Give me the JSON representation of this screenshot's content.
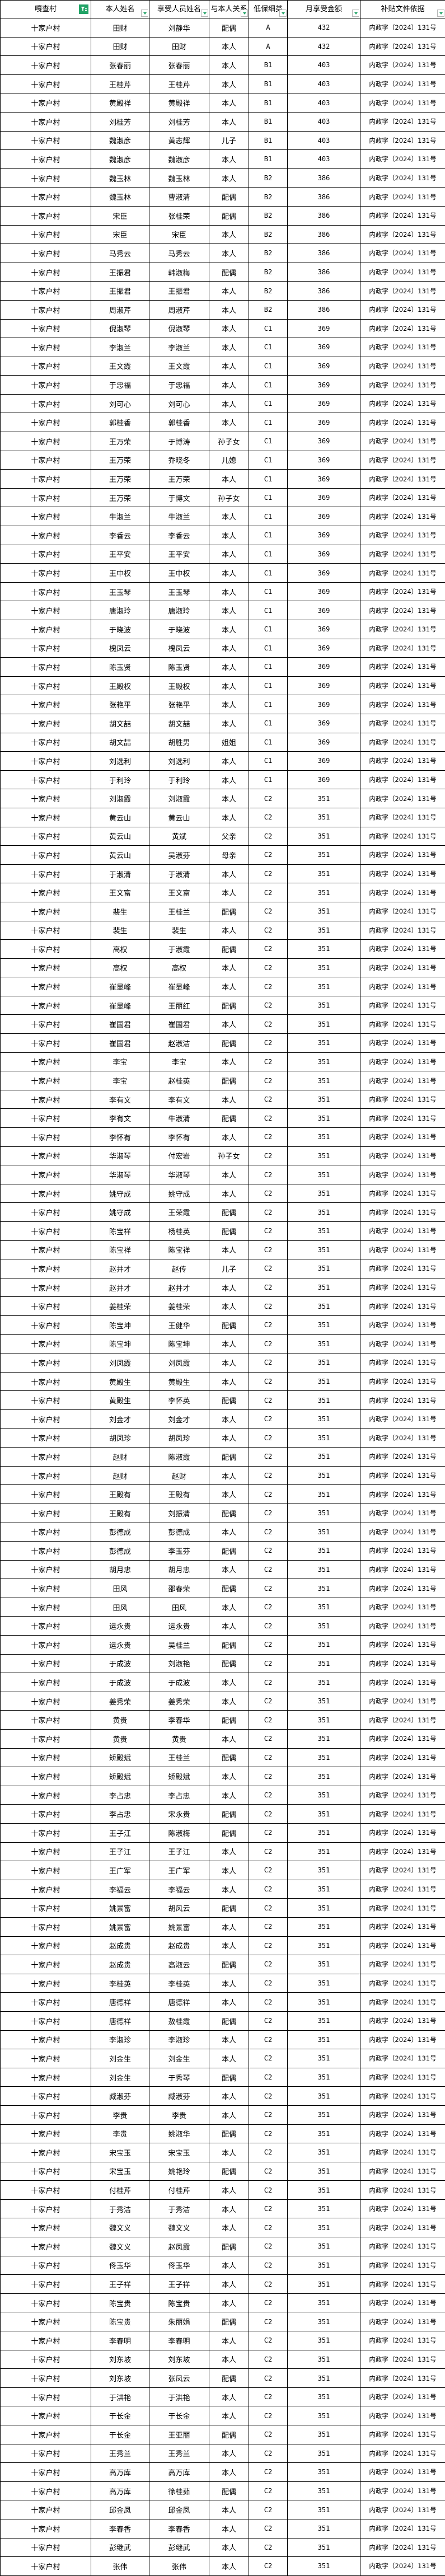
{
  "table": {
    "columns": [
      {
        "label": "嘎查村",
        "filter": "applied"
      },
      {
        "label": "本人姓名",
        "filter": "dropdown"
      },
      {
        "label": "享受人员姓名",
        "filter": "dropdown"
      },
      {
        "label": "与本人关系",
        "filter": "dropdown"
      },
      {
        "label": "低保细类",
        "filter": "dropdown"
      },
      {
        "label": "月享受金额",
        "filter": "dropdown"
      },
      {
        "label": "补贴文件依据",
        "filter": "dropdown"
      }
    ],
    "rows": [
      [
        "十家户村",
        "田财",
        "刘静华",
        "配偶",
        "A",
        "432",
        "内政字（2024）131号"
      ],
      [
        "十家户村",
        "田财",
        "田财",
        "本人",
        "A",
        "432",
        "内政字（2024）131号"
      ],
      [
        "十家户村",
        "张春丽",
        "张春丽",
        "本人",
        "B1",
        "403",
        "内政字（2024）131号"
      ],
      [
        "十家户村",
        "王桂芹",
        "王桂芹",
        "本人",
        "B1",
        "403",
        "内政字（2024）131号"
      ],
      [
        "十家户村",
        "黄殿祥",
        "黄殿祥",
        "本人",
        "B1",
        "403",
        "内政字（2024）131号"
      ],
      [
        "十家户村",
        "刘桂芳",
        "刘桂芳",
        "本人",
        "B1",
        "403",
        "内政字（2024）131号"
      ],
      [
        "十家户村",
        "魏淑彦",
        "黄志辉",
        "儿子",
        "B1",
        "403",
        "内政字（2024）131号"
      ],
      [
        "十家户村",
        "魏淑彦",
        "魏淑彦",
        "本人",
        "B1",
        "403",
        "内政字（2024）131号"
      ],
      [
        "十家户村",
        "魏玉林",
        "魏玉林",
        "本人",
        "B2",
        "386",
        "内政字（2024）131号"
      ],
      [
        "十家户村",
        "魏玉林",
        "曹淑清",
        "配偶",
        "B2",
        "386",
        "内政字（2024）131号"
      ],
      [
        "十家户村",
        "宋臣",
        "张桂荣",
        "配偶",
        "B2",
        "386",
        "内政字（2024）131号"
      ],
      [
        "十家户村",
        "宋臣",
        "宋臣",
        "本人",
        "B2",
        "386",
        "内政字（2024）131号"
      ],
      [
        "十家户村",
        "马秀云",
        "马秀云",
        "本人",
        "B2",
        "386",
        "内政字（2024）131号"
      ],
      [
        "十家户村",
        "王振君",
        "韩淑梅",
        "配偶",
        "B2",
        "386",
        "内政字（2024）131号"
      ],
      [
        "十家户村",
        "王振君",
        "王振君",
        "本人",
        "B2",
        "386",
        "内政字（2024）131号"
      ],
      [
        "十家户村",
        "周淑芹",
        "周淑芹",
        "本人",
        "B2",
        "386",
        "内政字（2024）131号"
      ],
      [
        "十家户村",
        "倪淑琴",
        "倪淑琴",
        "本人",
        "C1",
        "369",
        "内政字（2024）131号"
      ],
      [
        "十家户村",
        "李淑兰",
        "李淑兰",
        "本人",
        "C1",
        "369",
        "内政字（2024）131号"
      ],
      [
        "十家户村",
        "王文霞",
        "王文霞",
        "本人",
        "C1",
        "369",
        "内政字（2024）131号"
      ],
      [
        "十家户村",
        "于忠福",
        "于忠福",
        "本人",
        "C1",
        "369",
        "内政字（2024）131号"
      ],
      [
        "十家户村",
        "刘可心",
        "刘可心",
        "本人",
        "C1",
        "369",
        "内政字（2024）131号"
      ],
      [
        "十家户村",
        "郭桂香",
        "郭桂香",
        "本人",
        "C1",
        "369",
        "内政字（2024）131号"
      ],
      [
        "十家户村",
        "王万荣",
        "于博涛",
        "孙子女",
        "C1",
        "369",
        "内政字（2024）131号"
      ],
      [
        "十家户村",
        "王万荣",
        "乔晓冬",
        "儿媳",
        "C1",
        "369",
        "内政字（2024）131号"
      ],
      [
        "十家户村",
        "王万荣",
        "王万荣",
        "本人",
        "C1",
        "369",
        "内政字（2024）131号"
      ],
      [
        "十家户村",
        "王万荣",
        "于博文",
        "孙子女",
        "C1",
        "369",
        "内政字（2024）131号"
      ],
      [
        "十家户村",
        "牛淑兰",
        "牛淑兰",
        "本人",
        "C1",
        "369",
        "内政字（2024）131号"
      ],
      [
        "十家户村",
        "李香云",
        "李香云",
        "本人",
        "C1",
        "369",
        "内政字（2024）131号"
      ],
      [
        "十家户村",
        "王平安",
        "王平安",
        "本人",
        "C1",
        "369",
        "内政字（2024）131号"
      ],
      [
        "十家户村",
        "王中权",
        "王中权",
        "本人",
        "C1",
        "369",
        "内政字（2024）131号"
      ],
      [
        "十家户村",
        "王玉琴",
        "王玉琴",
        "本人",
        "C1",
        "369",
        "内政字（2024）131号"
      ],
      [
        "十家户村",
        "唐淑玲",
        "唐淑玲",
        "本人",
        "C1",
        "369",
        "内政字（2024）131号"
      ],
      [
        "十家户村",
        "于晓波",
        "于晓波",
        "本人",
        "C1",
        "369",
        "内政字（2024）131号"
      ],
      [
        "十家户村",
        "槐凤云",
        "槐凤云",
        "本人",
        "C1",
        "369",
        "内政字（2024）131号"
      ],
      [
        "十家户村",
        "陈玉贤",
        "陈玉贤",
        "本人",
        "C1",
        "369",
        "内政字（2024）131号"
      ],
      [
        "十家户村",
        "王殿权",
        "王殿权",
        "本人",
        "C1",
        "369",
        "内政字（2024）131号"
      ],
      [
        "十家户村",
        "张艳平",
        "张艳平",
        "本人",
        "C1",
        "369",
        "内政字（2024）131号"
      ],
      [
        "十家户村",
        "胡文喆",
        "胡文喆",
        "本人",
        "C1",
        "369",
        "内政字（2024）131号"
      ],
      [
        "十家户村",
        "胡文喆",
        "胡胜男",
        "姐姐",
        "C1",
        "369",
        "内政字（2024）131号"
      ],
      [
        "十家户村",
        "刘选利",
        "刘选利",
        "本人",
        "C1",
        "369",
        "内政字（2024）131号"
      ],
      [
        "十家户村",
        "于利玲",
        "于利玲",
        "本人",
        "C1",
        "369",
        "内政字（2024）131号"
      ],
      [
        "十家户村",
        "刘淑霞",
        "刘淑霞",
        "本人",
        "C2",
        "351",
        "内政字（2024）131号"
      ],
      [
        "十家户村",
        "黄云山",
        "黄云山",
        "本人",
        "C2",
        "351",
        "内政字（2024）131号"
      ],
      [
        "十家户村",
        "黄云山",
        "黄斌",
        "父亲",
        "C2",
        "351",
        "内政字（2024）131号"
      ],
      [
        "十家户村",
        "黄云山",
        "吴淑芬",
        "母亲",
        "C2",
        "351",
        "内政字（2024）131号"
      ],
      [
        "十家户村",
        "于淑清",
        "于淑清",
        "本人",
        "C2",
        "351",
        "内政字（2024）131号"
      ],
      [
        "十家户村",
        "王文富",
        "王文富",
        "本人",
        "C2",
        "351",
        "内政字（2024）131号"
      ],
      [
        "十家户村",
        "裴生",
        "王桂兰",
        "配偶",
        "C2",
        "351",
        "内政字（2024）131号"
      ],
      [
        "十家户村",
        "裴生",
        "裴生",
        "本人",
        "C2",
        "351",
        "内政字（2024）131号"
      ],
      [
        "十家户村",
        "高权",
        "于淑霞",
        "配偶",
        "C2",
        "351",
        "内政字（2024）131号"
      ],
      [
        "十家户村",
        "高权",
        "高权",
        "本人",
        "C2",
        "351",
        "内政字（2024）131号"
      ],
      [
        "十家户村",
        "崔显峰",
        "崔显峰",
        "本人",
        "C2",
        "351",
        "内政字（2024）131号"
      ],
      [
        "十家户村",
        "崔显峰",
        "王丽红",
        "配偶",
        "C2",
        "351",
        "内政字（2024）131号"
      ],
      [
        "十家户村",
        "崔国君",
        "崔国君",
        "本人",
        "C2",
        "351",
        "内政字（2024）131号"
      ],
      [
        "十家户村",
        "崔国君",
        "赵淑洁",
        "配偶",
        "C2",
        "351",
        "内政字（2024）131号"
      ],
      [
        "十家户村",
        "李宝",
        "李宝",
        "本人",
        "C2",
        "351",
        "内政字（2024）131号"
      ],
      [
        "十家户村",
        "李宝",
        "赵桂英",
        "配偶",
        "C2",
        "351",
        "内政字（2024）131号"
      ],
      [
        "十家户村",
        "李有文",
        "李有文",
        "本人",
        "C2",
        "351",
        "内政字（2024）131号"
      ],
      [
        "十家户村",
        "李有文",
        "牛淑清",
        "配偶",
        "C2",
        "351",
        "内政字（2024）131号"
      ],
      [
        "十家户村",
        "李怀有",
        "李怀有",
        "本人",
        "C2",
        "351",
        "内政字（2024）131号"
      ],
      [
        "十家户村",
        "华淑琴",
        "付宏岩",
        "孙子女",
        "C2",
        "351",
        "内政字（2024）131号"
      ],
      [
        "十家户村",
        "华淑琴",
        "华淑琴",
        "本人",
        "C2",
        "351",
        "内政字（2024）131号"
      ],
      [
        "十家户村",
        "姚守成",
        "姚守成",
        "本人",
        "C2",
        "351",
        "内政字（2024）131号"
      ],
      [
        "十家户村",
        "姚守成",
        "王荣霞",
        "配偶",
        "C2",
        "351",
        "内政字（2024）131号"
      ],
      [
        "十家户村",
        "陈宝祥",
        "杨桂英",
        "配偶",
        "C2",
        "351",
        "内政字（2024）131号"
      ],
      [
        "十家户村",
        "陈宝祥",
        "陈宝祥",
        "本人",
        "C2",
        "351",
        "内政字（2024）131号"
      ],
      [
        "十家户村",
        "赵井才",
        "赵传",
        "儿子",
        "C2",
        "351",
        "内政字（2024）131号"
      ],
      [
        "十家户村",
        "赵井才",
        "赵井才",
        "本人",
        "C2",
        "351",
        "内政字（2024）131号"
      ],
      [
        "十家户村",
        "姜桂荣",
        "姜桂荣",
        "本人",
        "C2",
        "351",
        "内政字（2024）131号"
      ],
      [
        "十家户村",
        "陈宝坤",
        "王健华",
        "配偶",
        "C2",
        "351",
        "内政字（2024）131号"
      ],
      [
        "十家户村",
        "陈宝坤",
        "陈宝坤",
        "本人",
        "C2",
        "351",
        "内政字（2024）131号"
      ],
      [
        "十家户村",
        "刘凤霞",
        "刘凤霞",
        "本人",
        "C2",
        "351",
        "内政字（2024）131号"
      ],
      [
        "十家户村",
        "黄殿生",
        "黄殿生",
        "本人",
        "C2",
        "351",
        "内政字（2024）131号"
      ],
      [
        "十家户村",
        "黄殿生",
        "李怀英",
        "配偶",
        "C2",
        "351",
        "内政字（2024）131号"
      ],
      [
        "十家户村",
        "刘金才",
        "刘金才",
        "本人",
        "C2",
        "351",
        "内政字（2024）131号"
      ],
      [
        "十家户村",
        "胡凤珍",
        "胡凤珍",
        "本人",
        "C2",
        "351",
        "内政字（2024）131号"
      ],
      [
        "十家户村",
        "赵财",
        "陈淑霞",
        "配偶",
        "C2",
        "351",
        "内政字（2024）131号"
      ],
      [
        "十家户村",
        "赵财",
        "赵财",
        "本人",
        "C2",
        "351",
        "内政字（2024）131号"
      ],
      [
        "十家户村",
        "王殿有",
        "王殿有",
        "本人",
        "C2",
        "351",
        "内政字（2024）131号"
      ],
      [
        "十家户村",
        "王殿有",
        "刘振清",
        "配偶",
        "C2",
        "351",
        "内政字（2024）131号"
      ],
      [
        "十家户村",
        "彭德成",
        "彭德成",
        "本人",
        "C2",
        "351",
        "内政字（2024）131号"
      ],
      [
        "十家户村",
        "彭德成",
        "李玉芬",
        "配偶",
        "C2",
        "351",
        "内政字（2024）131号"
      ],
      [
        "十家户村",
        "胡月忠",
        "胡月忠",
        "本人",
        "C2",
        "351",
        "内政字（2024）131号"
      ],
      [
        "十家户村",
        "田风",
        "邵春荣",
        "配偶",
        "C2",
        "351",
        "内政字（2024）131号"
      ],
      [
        "十家户村",
        "田风",
        "田风",
        "本人",
        "C2",
        "351",
        "内政字（2024）131号"
      ],
      [
        "十家户村",
        "运永贵",
        "运永贵",
        "本人",
        "C2",
        "351",
        "内政字（2024）131号"
      ],
      [
        "十家户村",
        "运永贵",
        "吴桂兰",
        "配偶",
        "C2",
        "351",
        "内政字（2024）131号"
      ],
      [
        "十家户村",
        "于成波",
        "刘淑艳",
        "配偶",
        "C2",
        "351",
        "内政字（2024）131号"
      ],
      [
        "十家户村",
        "于成波",
        "于成波",
        "本人",
        "C2",
        "351",
        "内政字（2024）131号"
      ],
      [
        "十家户村",
        "姜秀荣",
        "姜秀荣",
        "本人",
        "C2",
        "351",
        "内政字（2024）131号"
      ],
      [
        "十家户村",
        "黄贵",
        "李春华",
        "配偶",
        "C2",
        "351",
        "内政字（2024）131号"
      ],
      [
        "十家户村",
        "黄贵",
        "黄贵",
        "本人",
        "C2",
        "351",
        "内政字（2024）131号"
      ],
      [
        "十家户村",
        "矫殿斌",
        "王桂兰",
        "配偶",
        "C2",
        "351",
        "内政字（2024）131号"
      ],
      [
        "十家户村",
        "矫殿斌",
        "矫殿斌",
        "本人",
        "C2",
        "351",
        "内政字（2024）131号"
      ],
      [
        "十家户村",
        "李占忠",
        "李占忠",
        "本人",
        "C2",
        "351",
        "内政字（2024）131号"
      ],
      [
        "十家户村",
        "李占忠",
        "宋永贵",
        "配偶",
        "C2",
        "351",
        "内政字（2024）131号"
      ],
      [
        "十家户村",
        "王子江",
        "陈淑梅",
        "配偶",
        "C2",
        "351",
        "内政字（2024）131号"
      ],
      [
        "十家户村",
        "王子江",
        "王子江",
        "本人",
        "C2",
        "351",
        "内政字（2024）131号"
      ],
      [
        "十家户村",
        "王广军",
        "王广军",
        "本人",
        "C2",
        "351",
        "内政字（2024）131号"
      ],
      [
        "十家户村",
        "李福云",
        "李福云",
        "本人",
        "C2",
        "351",
        "内政字（2024）131号"
      ],
      [
        "十家户村",
        "姚景富",
        "胡风云",
        "配偶",
        "C2",
        "351",
        "内政字（2024）131号"
      ],
      [
        "十家户村",
        "姚景富",
        "姚景富",
        "本人",
        "C2",
        "351",
        "内政字（2024）131号"
      ],
      [
        "十家户村",
        "赵成贵",
        "赵成贵",
        "本人",
        "C2",
        "351",
        "内政字（2024）131号"
      ],
      [
        "十家户村",
        "赵成贵",
        "高淑云",
        "配偶",
        "C2",
        "351",
        "内政字（2024）131号"
      ],
      [
        "十家户村",
        "李桂英",
        "李桂英",
        "本人",
        "C2",
        "351",
        "内政字（2024）131号"
      ],
      [
        "十家户村",
        "唐德祥",
        "唐德祥",
        "本人",
        "C2",
        "351",
        "内政字（2024）131号"
      ],
      [
        "十家户村",
        "唐德祥",
        "敖桂霞",
        "配偶",
        "C2",
        "351",
        "内政字（2024）131号"
      ],
      [
        "十家户村",
        "李淑珍",
        "李淑珍",
        "本人",
        "C2",
        "351",
        "内政字（2024）131号"
      ],
      [
        "十家户村",
        "刘金生",
        "刘金生",
        "本人",
        "C2",
        "351",
        "内政字（2024）131号"
      ],
      [
        "十家户村",
        "刘金生",
        "于秀琴",
        "配偶",
        "C2",
        "351",
        "内政字（2024）131号"
      ],
      [
        "十家户村",
        "臧淑芬",
        "臧淑芬",
        "本人",
        "C2",
        "351",
        "内政字（2024）131号"
      ],
      [
        "十家户村",
        "李贵",
        "李贵",
        "本人",
        "C2",
        "351",
        "内政字（2024）131号"
      ],
      [
        "十家户村",
        "李贵",
        "姚淑华",
        "配偶",
        "C2",
        "351",
        "内政字（2024）131号"
      ],
      [
        "十家户村",
        "宋宝玉",
        "宋宝玉",
        "本人",
        "C2",
        "351",
        "内政字（2024）131号"
      ],
      [
        "十家户村",
        "宋宝玉",
        "姚艳玲",
        "配偶",
        "C2",
        "351",
        "内政字（2024）131号"
      ],
      [
        "十家户村",
        "付桂芹",
        "付桂芹",
        "本人",
        "C2",
        "351",
        "内政字（2024）131号"
      ],
      [
        "十家户村",
        "于秀洁",
        "于秀洁",
        "本人",
        "C2",
        "351",
        "内政字（2024）131号"
      ],
      [
        "十家户村",
        "魏文义",
        "魏文义",
        "本人",
        "C2",
        "351",
        "内政字（2024）131号"
      ],
      [
        "十家户村",
        "魏文义",
        "赵凤霞",
        "配偶",
        "C2",
        "351",
        "内政字（2024）131号"
      ],
      [
        "十家户村",
        "佟玉华",
        "佟玉华",
        "本人",
        "C2",
        "351",
        "内政字（2024）131号"
      ],
      [
        "十家户村",
        "王子祥",
        "王子祥",
        "本人",
        "C2",
        "351",
        "内政字（2024）131号"
      ],
      [
        "十家户村",
        "陈宝贵",
        "陈宝贵",
        "本人",
        "C2",
        "351",
        "内政字（2024）131号"
      ],
      [
        "十家户村",
        "陈宝贵",
        "朱丽娟",
        "配偶",
        "C2",
        "351",
        "内政字（2024）131号"
      ],
      [
        "十家户村",
        "李春明",
        "李春明",
        "本人",
        "C2",
        "351",
        "内政字（2024）131号"
      ],
      [
        "十家户村",
        "刘东坡",
        "刘东坡",
        "本人",
        "C2",
        "351",
        "内政字（2024）131号"
      ],
      [
        "十家户村",
        "刘东坡",
        "张凤云",
        "配偶",
        "C2",
        "351",
        "内政字（2024）131号"
      ],
      [
        "十家户村",
        "于洪艳",
        "于洪艳",
        "本人",
        "C2",
        "351",
        "内政字（2024）131号"
      ],
      [
        "十家户村",
        "于长金",
        "于长金",
        "本人",
        "C2",
        "351",
        "内政字（2024）131号"
      ],
      [
        "十家户村",
        "于长金",
        "王亚丽",
        "配偶",
        "C2",
        "351",
        "内政字（2024）131号"
      ],
      [
        "十家户村",
        "王秀兰",
        "王秀兰",
        "本人",
        "C2",
        "351",
        "内政字（2024）131号"
      ],
      [
        "十家户村",
        "高万库",
        "高万库",
        "本人",
        "C2",
        "351",
        "内政字（2024）131号"
      ],
      [
        "十家户村",
        "高万库",
        "徐桂茹",
        "配偶",
        "C2",
        "351",
        "内政字（2024）131号"
      ],
      [
        "十家户村",
        "邱金凤",
        "邱金凤",
        "本人",
        "C2",
        "351",
        "内政字（2024）131号"
      ],
      [
        "十家户村",
        "李春香",
        "李春香",
        "本人",
        "C2",
        "351",
        "内政字（2024）131号"
      ],
      [
        "十家户村",
        "彭继武",
        "彭继武",
        "本人",
        "C2",
        "351",
        "内政字（2024）131号"
      ],
      [
        "十家户村",
        "张伟",
        "张伟",
        "本人",
        "C2",
        "351",
        "内政字（2024）131号"
      ]
    ]
  },
  "colors": {
    "accent_green": "#21a366",
    "grid_border": "#000000",
    "dropdown_button_border": "#b7b7b7",
    "background": "#ffffff"
  },
  "icons": {
    "filter_applied": "funnel-applied-icon",
    "filter_dropdown": "filter-dropdown-arrow-icon"
  }
}
